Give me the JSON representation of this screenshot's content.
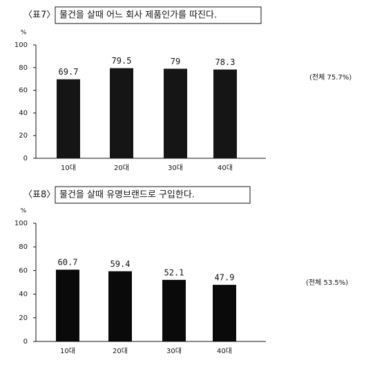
{
  "chart_data": [
    {
      "type": "bar",
      "label": "〈표7〉",
      "title": "물건을 살때 어느 회사 제품인가를 따진다.",
      "unit": "%",
      "categories": [
        "10대",
        "20대",
        "30대",
        "40대"
      ],
      "values": [
        69.7,
        79.5,
        79,
        78.3
      ],
      "color": "#151515",
      "ylim": [
        0,
        100
      ],
      "yticks": [
        0,
        20,
        40,
        60,
        80,
        100
      ],
      "annotation": "(전체 75.7%)"
    },
    {
      "type": "bar",
      "label": "〈표8〉",
      "title": "물건을 살때 유명브랜드로 구입한다.",
      "unit": "%",
      "categories": [
        "10대",
        "20대",
        "30대",
        "40대"
      ],
      "values": [
        60.7,
        59.4,
        52.1,
        47.9
      ],
      "color": "#0a0a0a",
      "ylim": [
        0,
        100
      ],
      "yticks": [
        0,
        20,
        40,
        60,
        80,
        100
      ],
      "annotation": "(전체 53.5%)"
    }
  ]
}
